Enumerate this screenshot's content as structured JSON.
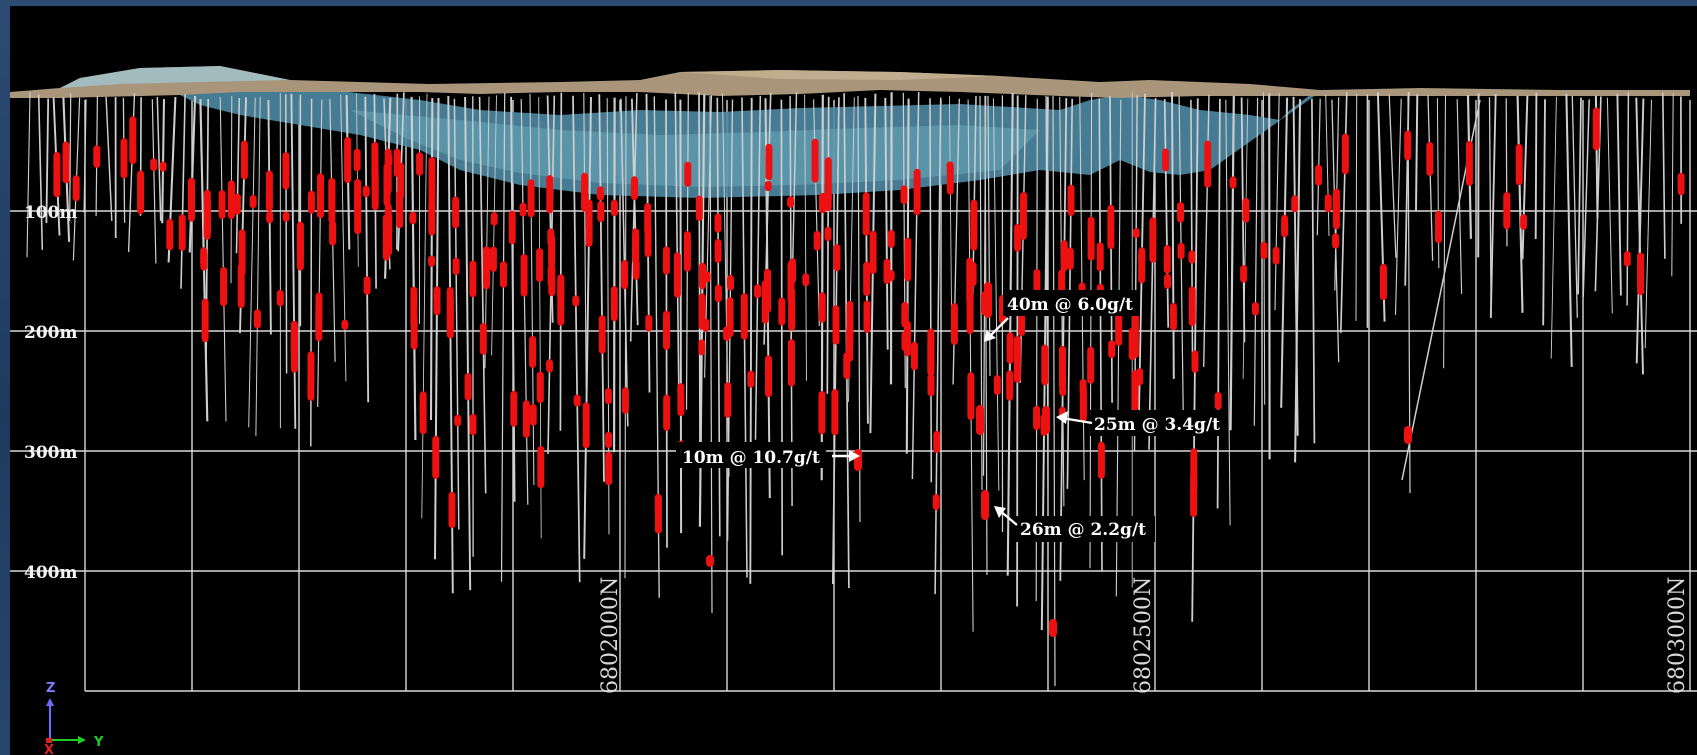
{
  "depth_labels": [
    "100m",
    "200m",
    "300m",
    "400m"
  ],
  "northing_labels": [
    "6802000N",
    "6802500N",
    "6803000N"
  ],
  "intercepts": [
    {
      "text": "40m @ 6.0g/t",
      "arrow": "down-left"
    },
    {
      "text": "25m @ 3.4g/t",
      "arrow": "left"
    },
    {
      "text": "10m @ 10.7g/t",
      "arrow": "right"
    },
    {
      "text": "26m @ 2.2g/t",
      "arrow": "up-left"
    }
  ],
  "axis_triad": {
    "z": "Z",
    "y": "Y",
    "x": "X"
  },
  "colors": {
    "background": "#000000",
    "frame": "#24446b",
    "grid": "#d9d9d9",
    "drill_hole": "#cfcfcf",
    "mineralisation": "#ee1111",
    "pit_water": "#4f8ea6",
    "topography": "#a89476"
  }
}
